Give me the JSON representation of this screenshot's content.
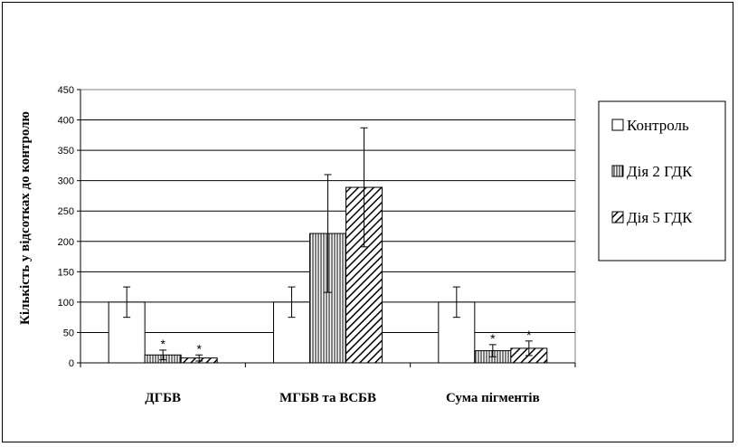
{
  "chart_data": {
    "type": "bar",
    "ylabel": "Кількість  у відсотках до контролю",
    "ylim": [
      0,
      450
    ],
    "yticks": [
      0,
      50,
      100,
      150,
      200,
      250,
      300,
      350,
      400,
      450
    ],
    "grid": true,
    "legend_position": "right",
    "categories": [
      "ДГБВ",
      "МГБВ та ВСБВ",
      "Сума пігментів"
    ],
    "series": [
      {
        "name": "Контроль",
        "pattern": "none",
        "values": [
          100,
          100,
          100
        ],
        "errors": [
          25,
          25,
          25
        ],
        "stars": [
          false,
          false,
          false
        ]
      },
      {
        "name": "Дія 2 ГДК",
        "pattern": "vertical",
        "values": [
          13,
          213,
          20
        ],
        "errors": [
          8,
          97,
          10
        ],
        "stars": [
          true,
          false,
          true
        ]
      },
      {
        "name": "Дія 5 ГДК",
        "pattern": "diagonal",
        "values": [
          8,
          289,
          24
        ],
        "errors": [
          5,
          98,
          12
        ],
        "stars": [
          true,
          false,
          true
        ]
      }
    ],
    "star_symbol": "*"
  }
}
